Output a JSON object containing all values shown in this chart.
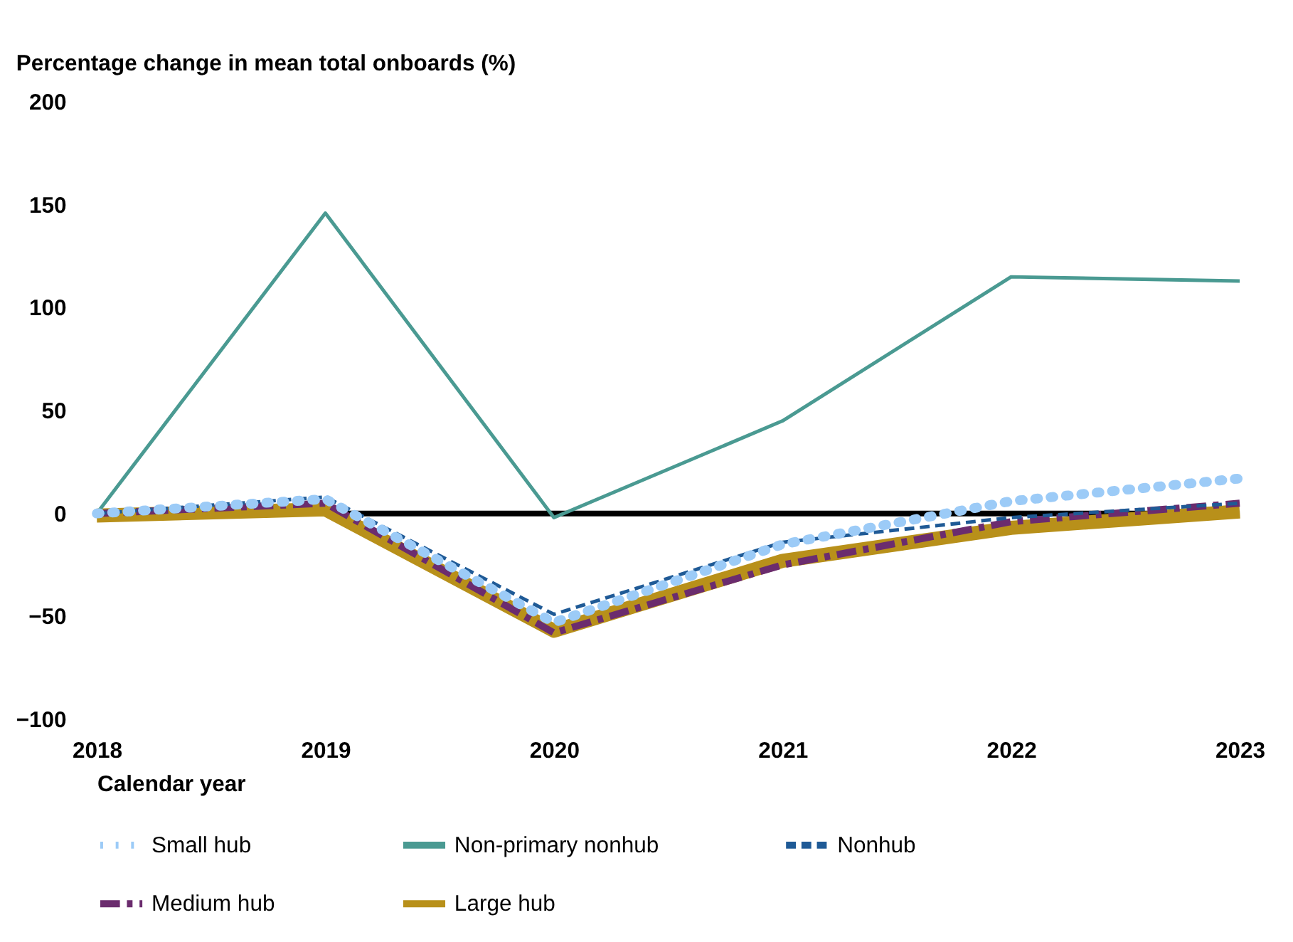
{
  "chart_data": {
    "type": "line",
    "ylabel": "Percentage change in mean total onboards (%)",
    "xlabel": "Calendar year",
    "categories": [
      "2018",
      "2019",
      "2020",
      "2021",
      "2022",
      "2023"
    ],
    "series": [
      {
        "name": "Small hub",
        "color": "#9ccbf7",
        "line_style": "dotted",
        "values": [
          0,
          7,
          -53,
          -15,
          6,
          17
        ]
      },
      {
        "name": "Non-primary nonhub",
        "color": "#4a9a92",
        "line_style": "solid",
        "values": [
          0,
          146,
          -2,
          45,
          115,
          113
        ]
      },
      {
        "name": "Nonhub",
        "color": "#1f5a96",
        "line_style": "dashed",
        "values": [
          0,
          8,
          -49,
          -14,
          -2,
          5
        ]
      },
      {
        "name": "Medium hub",
        "color": "#6b2c6e",
        "line_style": "dashdot",
        "values": [
          0,
          5,
          -58,
          -25,
          -4,
          5
        ]
      },
      {
        "name": "Large hub",
        "color": "#b8901a",
        "line_style": "solid",
        "values": [
          -1,
          2,
          -57,
          -23,
          -7,
          1
        ]
      }
    ],
    "ylim": [
      -100,
      200
    ],
    "yticks": [
      -100,
      -50,
      0,
      50,
      100,
      150,
      200
    ],
    "grid": false,
    "legend": "bottom",
    "ref_lines": [
      {
        "axis": "y",
        "value": 0,
        "color": "#000000"
      }
    ]
  }
}
